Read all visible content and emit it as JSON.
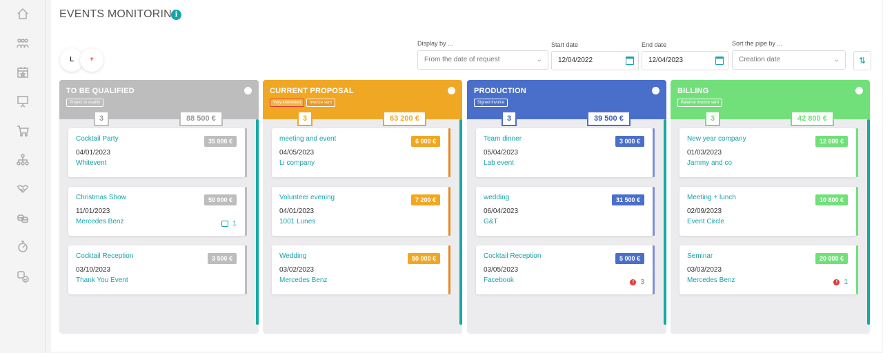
{
  "page": {
    "title": "EVENTS MONITORING",
    "info": "i"
  },
  "view_buttons": {
    "l": "L",
    "add": "+"
  },
  "filters": {
    "display_by_label": "Display by ...",
    "display_by_value": "From the date of request",
    "start_label": "Start date",
    "start_value": "12/04/2022",
    "end_label": "End date",
    "end_value": "12/04/2023",
    "sort_label": "Sort the pipe by ...",
    "sort_value": "Creation date"
  },
  "sidebar": {
    "items": [
      "home-icon",
      "team-icon",
      "calendar-icon",
      "presentation-icon",
      "cart-icon",
      "org-chart-icon",
      "handshake-icon",
      "coins-icon",
      "stopwatch-icon",
      "settings-check-icon"
    ]
  },
  "columns": [
    {
      "title": "TO BE QUALIFIED",
      "color": "#bdbdbd",
      "bar": "#bdbdbd",
      "tags": [
        "Project to qualify"
      ],
      "count": "3",
      "total": "88 500  €",
      "cards": [
        {
          "name": "Cocktail Party",
          "date": "04/01/2023",
          "client": "Whitevent",
          "amount": "35 000 €",
          "meta": ""
        },
        {
          "name": "Christmas Show",
          "date": "11/01/2023",
          "client": "Mercedes Benz",
          "amount": "50 000 €",
          "meta": "1"
        },
        {
          "name": "Cocktail Reception",
          "date": "03/10/2023",
          "client": "Thank You Event",
          "amount": "3 500 €",
          "meta": ""
        }
      ]
    },
    {
      "title": "CURRENT PROPOSAL",
      "color": "#f0a824",
      "bar": "#e88a1e",
      "tags": [
        "Very interested",
        "Invoice sent"
      ],
      "count": "3",
      "total": "63 200  €",
      "cards": [
        {
          "name": "meeting and event",
          "date": "04/05/2023",
          "client": "Li company",
          "amount": "6 000 €",
          "meta": ""
        },
        {
          "name": "Volunteer evening",
          "date": "04/01/2023",
          "client": "1001 Lunes",
          "amount": "7 200 €",
          "meta": ""
        },
        {
          "name": "Wedding",
          "date": "03/02/2023",
          "client": "Mercedes Benz",
          "amount": "50 000 €",
          "meta": ""
        }
      ]
    },
    {
      "title": "PRODUCTION",
      "color": "#4a6fcb",
      "bar": "#7e8ed8",
      "tags": [
        "Signed invoice"
      ],
      "count": "3",
      "total": "39 500  €",
      "cards": [
        {
          "name": "Team dinner",
          "date": "05/04/2023",
          "client": "Lab event",
          "amount": "3 000 €",
          "meta": ""
        },
        {
          "name": "wedding",
          "date": "06/04/2023",
          "client": "G&T",
          "amount": "31 500 €",
          "meta": ""
        },
        {
          "name": "Cocktail Reception",
          "date": "03/05/2023",
          "client": "Facebook",
          "amount": "5 000 €",
          "meta": "3"
        }
      ]
    },
    {
      "title": "BILLING",
      "color": "#72e07a",
      "bar": "#72e07a",
      "tags": [
        "Balance invoice sent"
      ],
      "count": "3",
      "total": "42 800  €",
      "cards": [
        {
          "name": "New year company",
          "date": "01/03/2023",
          "client": "Jammy and co",
          "amount": "12 000 €",
          "meta": ""
        },
        {
          "name": "Meeting + lunch",
          "date": "02/09/2023",
          "client": "Event Circle",
          "amount": "10 800 €",
          "meta": ""
        },
        {
          "name": "Seminar",
          "date": "03/03/2023",
          "client": "Mercedes Benz",
          "amount": "20 000 €",
          "meta": "1"
        }
      ]
    }
  ]
}
